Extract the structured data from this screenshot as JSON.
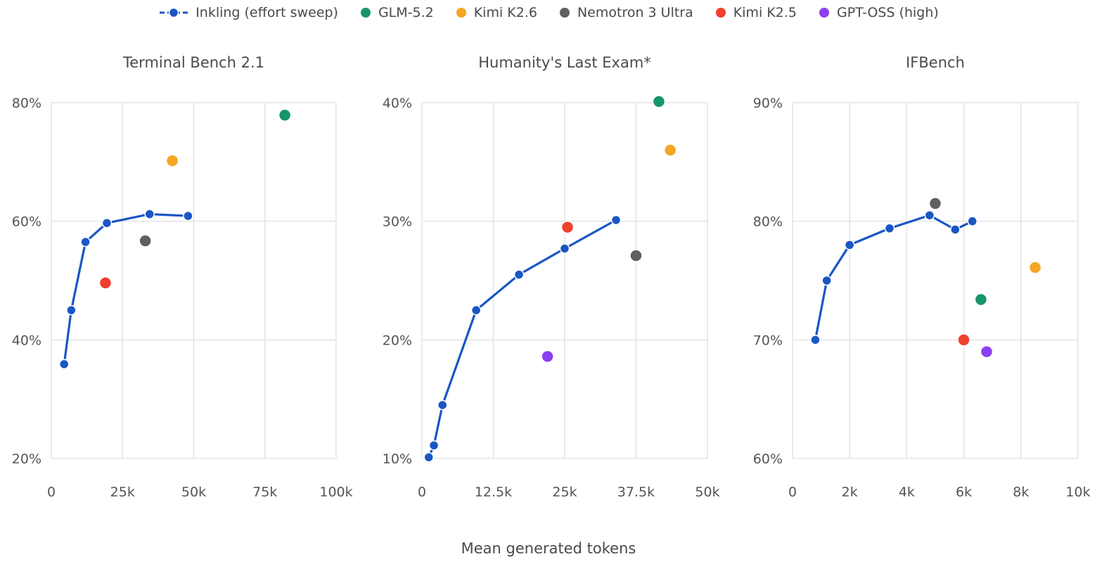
{
  "legend": [
    {
      "label": "Inkling (effort sweep)",
      "color": "#1a56c4",
      "kind": "line"
    },
    {
      "label": "GLM-5.2",
      "color": "#16946b",
      "kind": "dot"
    },
    {
      "label": "Kimi K2.6",
      "color": "#f5a623",
      "kind": "dot"
    },
    {
      "label": "Nemotron 3 Ultra",
      "color": "#5f5f5f",
      "kind": "dot"
    },
    {
      "label": "Kimi K2.5",
      "color": "#f0402e",
      "kind": "dot"
    },
    {
      "label": "GPT-OSS (high)",
      "color": "#8a3ff0",
      "kind": "dot"
    }
  ],
  "x_caption": "Mean generated tokens",
  "chart_data": [
    {
      "type": "scatter",
      "title": "Terminal Bench 2.1",
      "xlabel": "Mean generated tokens",
      "ylabel": "",
      "xlim": [
        0,
        100000
      ],
      "ylim": [
        20,
        80
      ],
      "x_ticks": [
        0,
        25000,
        50000,
        75000,
        100000
      ],
      "x_tick_labels": [
        "0",
        "25k",
        "50k",
        "75k",
        "100k"
      ],
      "y_ticks": [
        20,
        40,
        60,
        80
      ],
      "y_tick_labels": [
        "20%",
        "40%",
        "60%",
        "80%"
      ],
      "grid": true,
      "sweep": {
        "name": "Inkling (effort sweep)",
        "points": [
          [
            4500,
            35.9
          ],
          [
            7000,
            45.0
          ],
          [
            12000,
            56.5
          ],
          [
            19500,
            59.7
          ],
          [
            34500,
            61.2
          ],
          [
            48000,
            60.9
          ]
        ]
      },
      "models": [
        {
          "name": "GLM-5.2",
          "x": 82000,
          "y": 77.9
        },
        {
          "name": "Kimi K2.6",
          "x": 42500,
          "y": 70.2
        },
        {
          "name": "Nemotron 3 Ultra",
          "x": 33000,
          "y": 56.7
        },
        {
          "name": "Kimi K2.5",
          "x": 19000,
          "y": 49.6
        }
      ]
    },
    {
      "type": "scatter",
      "title": "Humanity's Last Exam*",
      "xlabel": "Mean generated tokens",
      "ylabel": "",
      "xlim": [
        0,
        50000
      ],
      "ylim": [
        10,
        40
      ],
      "x_ticks": [
        0,
        12500,
        25000,
        37500,
        50000
      ],
      "x_tick_labels": [
        "0",
        "12.5k",
        "25k",
        "37.5k",
        "50k"
      ],
      "y_ticks": [
        10,
        20,
        30,
        40
      ],
      "y_tick_labels": [
        "10%",
        "20%",
        "30%",
        "40%"
      ],
      "grid": true,
      "sweep": {
        "name": "Inkling (effort sweep)",
        "points": [
          [
            1200,
            10.1
          ],
          [
            2100,
            11.1
          ],
          [
            3600,
            14.5
          ],
          [
            9500,
            22.5
          ],
          [
            17000,
            25.5
          ],
          [
            25000,
            27.7
          ],
          [
            34000,
            30.1
          ]
        ]
      },
      "models": [
        {
          "name": "GLM-5.2",
          "x": 41500,
          "y": 40.1
        },
        {
          "name": "Kimi K2.6",
          "x": 43500,
          "y": 36.0
        },
        {
          "name": "Nemotron 3 Ultra",
          "x": 37500,
          "y": 27.1
        },
        {
          "name": "Kimi K2.5",
          "x": 25500,
          "y": 29.5
        },
        {
          "name": "GPT-OSS (high)",
          "x": 22000,
          "y": 18.6
        }
      ]
    },
    {
      "type": "scatter",
      "title": "IFBench",
      "xlabel": "Mean generated tokens",
      "ylabel": "",
      "xlim": [
        0,
        10000
      ],
      "ylim": [
        60,
        90
      ],
      "x_ticks": [
        0,
        2000,
        4000,
        6000,
        8000,
        10000
      ],
      "x_tick_labels": [
        "0",
        "2k",
        "4k",
        "6k",
        "8k",
        "10k"
      ],
      "y_ticks": [
        60,
        70,
        80,
        90
      ],
      "y_tick_labels": [
        "60%",
        "70%",
        "80%",
        "90%"
      ],
      "grid": true,
      "sweep": {
        "name": "Inkling (effort sweep)",
        "points": [
          [
            800,
            70.0
          ],
          [
            1200,
            75.0
          ],
          [
            2000,
            78.0
          ],
          [
            3400,
            79.4
          ],
          [
            4800,
            80.5
          ],
          [
            5700,
            79.3
          ],
          [
            6300,
            80.0
          ]
        ]
      },
      "models": [
        {
          "name": "GLM-5.2",
          "x": 6600,
          "y": 73.4
        },
        {
          "name": "Kimi K2.6",
          "x": 8500,
          "y": 76.1
        },
        {
          "name": "Nemotron 3 Ultra",
          "x": 5000,
          "y": 81.5
        },
        {
          "name": "Kimi K2.5",
          "x": 6000,
          "y": 70.0
        },
        {
          "name": "GPT-OSS (high)",
          "x": 6800,
          "y": 69.0
        }
      ]
    }
  ]
}
